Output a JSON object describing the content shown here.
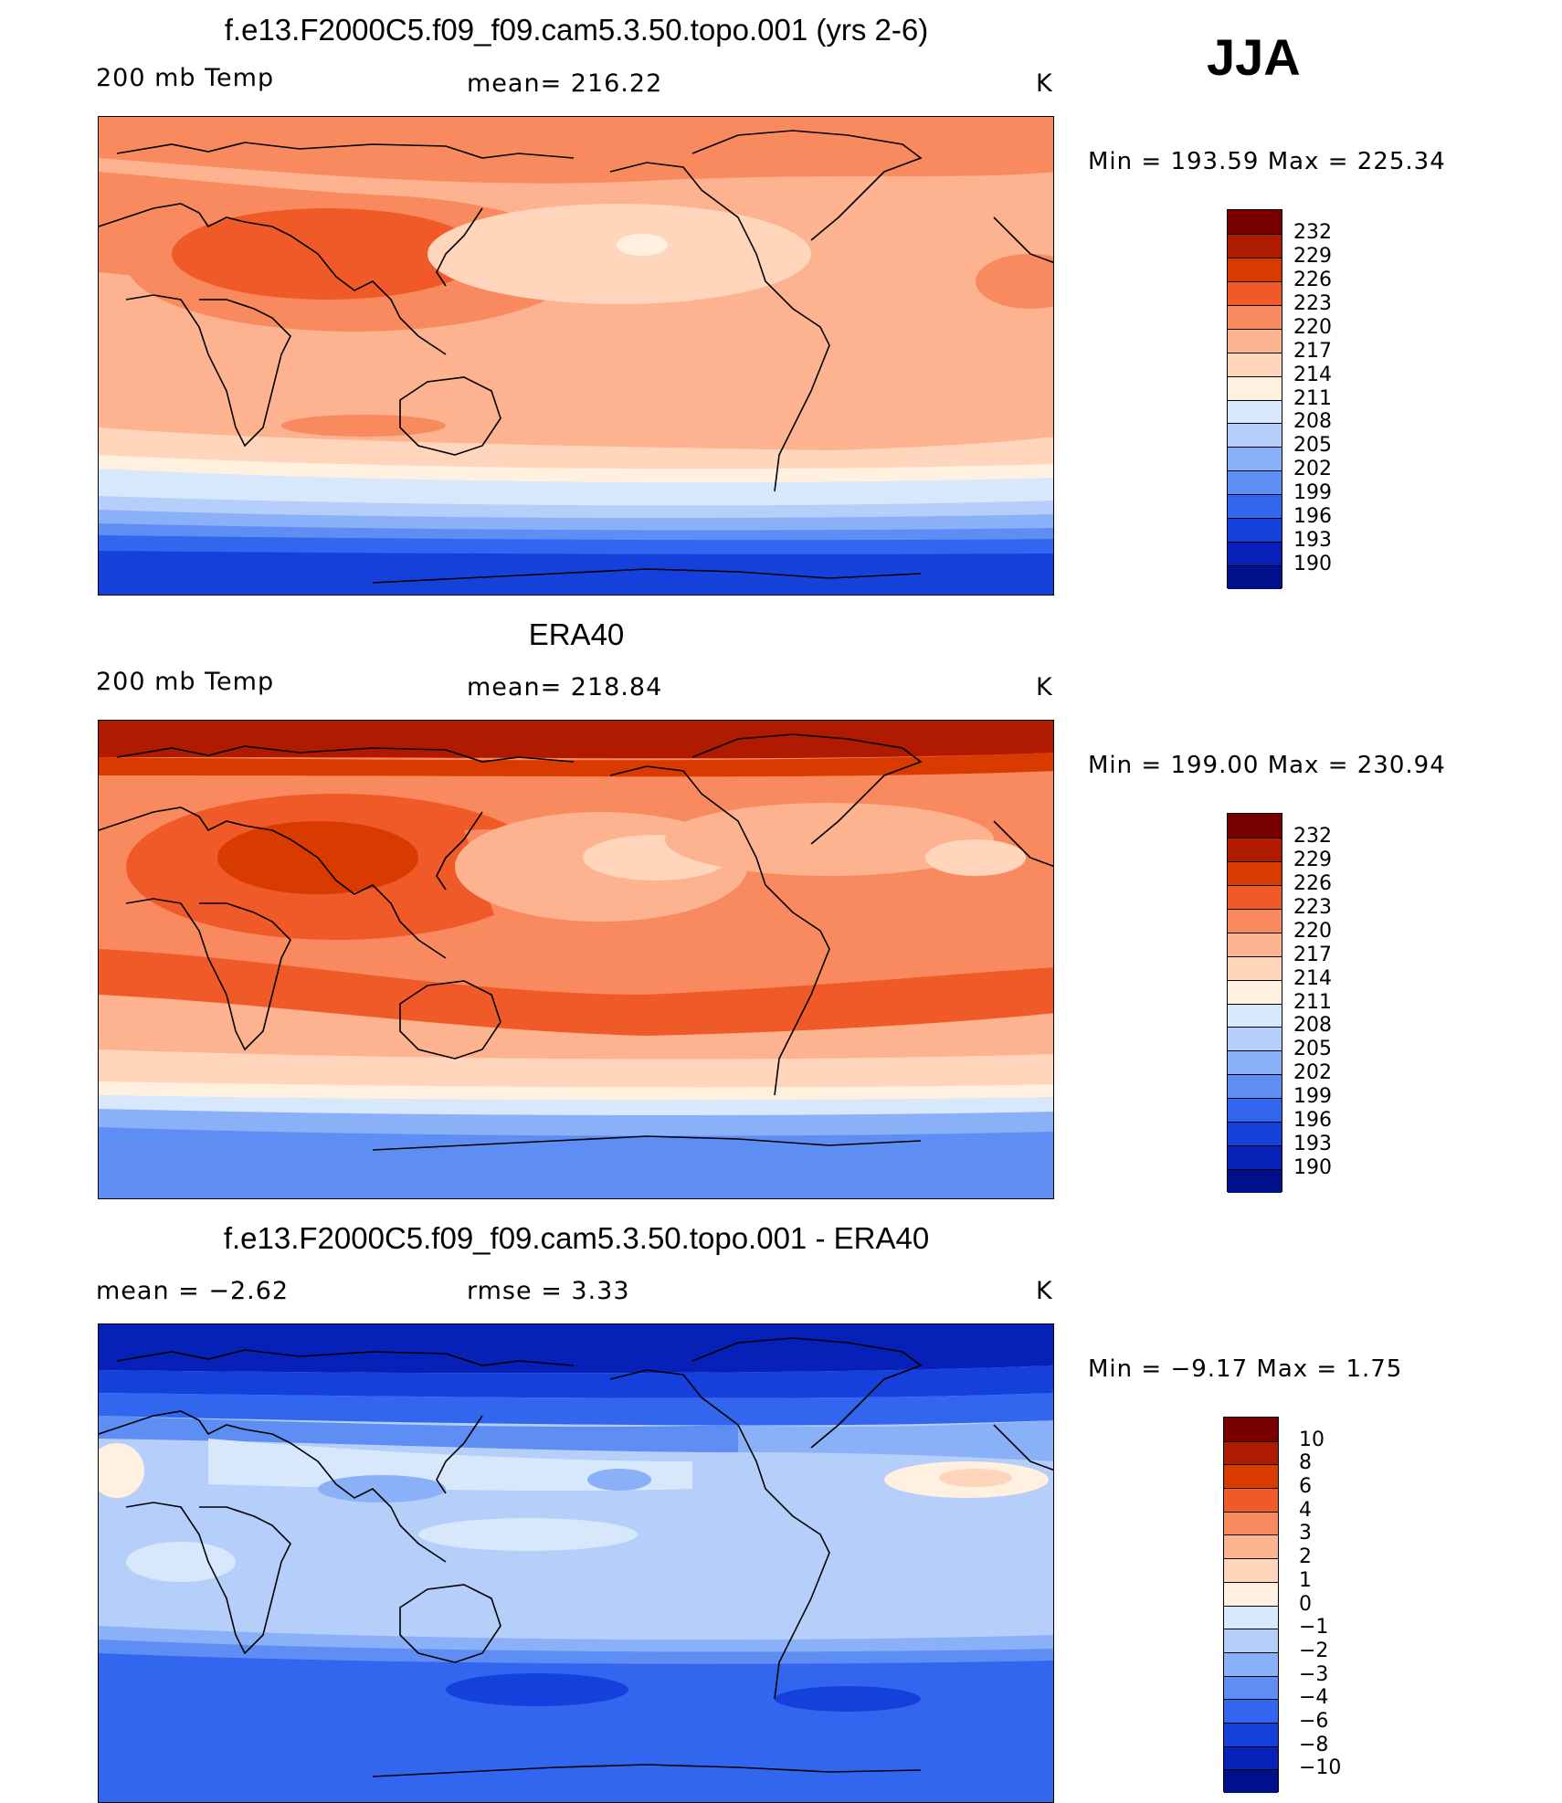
{
  "season": "JJA",
  "panels": [
    {
      "title": "f.e13.F2000C5.f09_f09.cam5.3.50.topo.001 (yrs 2-6)",
      "left_label": "200 mb Temp",
      "center_label": "mean= 216.22",
      "units": "K",
      "minmax": "Min = 193.59 Max = 225.34"
    },
    {
      "title": "ERA40",
      "left_label": "200 mb Temp",
      "center_label": "mean= 218.84",
      "units": "K",
      "minmax": "Min = 199.00 Max = 230.94"
    },
    {
      "title": "f.e13.F2000C5.f09_f09.cam5.3.50.topo.001 - ERA40",
      "left_label": "mean =   −2.62",
      "center_label": "rmse =    3.33",
      "units": "K",
      "minmax": "Min =   −9.17 Max =    1.75"
    }
  ],
  "colorbars": {
    "temp": {
      "colors": [
        "#7a0000",
        "#b01a00",
        "#d83a00",
        "#f05a28",
        "#f98a60",
        "#fdb290",
        "#ffd5bc",
        "#fff0df",
        "#d7e8fc",
        "#b5cefa",
        "#8ab0f8",
        "#5e8ef3",
        "#3366ee",
        "#1640dc",
        "#0620b8",
        "#00108a"
      ],
      "labels": [
        "232",
        "229",
        "226",
        "223",
        "220",
        "217",
        "214",
        "211",
        "208",
        "205",
        "202",
        "199",
        "196",
        "193",
        "190"
      ]
    },
    "diff": {
      "colors": [
        "#7a0000",
        "#b01a00",
        "#d83a00",
        "#f05a28",
        "#f98a60",
        "#fdb290",
        "#ffd5bc",
        "#fff0df",
        "#d7e8fc",
        "#b5cefa",
        "#8ab0f8",
        "#5e8ef3",
        "#3366ee",
        "#1640dc",
        "#0620b8",
        "#00108a"
      ],
      "labels": [
        "10",
        "8",
        "6",
        "4",
        "3",
        "2",
        "1",
        "0",
        "−1",
        "−2",
        "−3",
        "−4",
        "−6",
        "−8",
        "−10"
      ]
    }
  }
}
